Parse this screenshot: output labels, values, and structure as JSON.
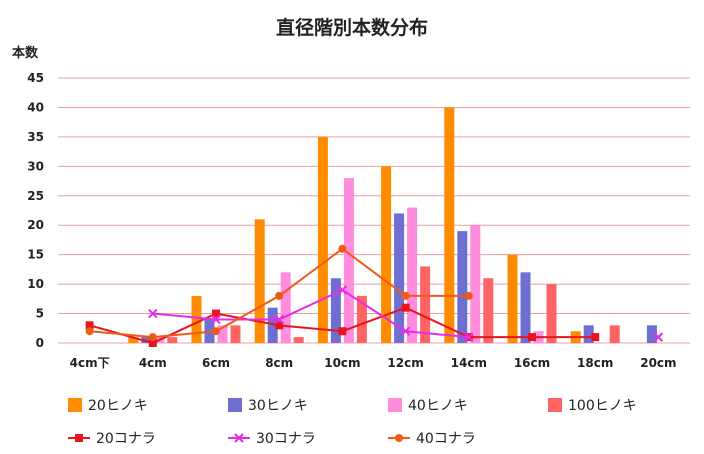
{
  "chart_data": {
    "type": "bar",
    "title": "直径階別本数分布",
    "ylabel": "本数",
    "xlabel": "",
    "ylim": [
      0,
      45
    ],
    "yticks": [
      0,
      5,
      10,
      15,
      20,
      25,
      30,
      35,
      40,
      45
    ],
    "grid": true,
    "legend_position": "bottom",
    "categories": [
      "4cm下",
      "4cm",
      "6cm",
      "8cm",
      "10cm",
      "12cm",
      "14cm",
      "16cm",
      "18cm",
      "20cm"
    ],
    "bar_series": [
      {
        "name": "20ヒノキ",
        "color": "#FF8C00",
        "values": [
          0,
          1,
          8,
          21,
          35,
          30,
          40,
          15,
          2,
          0
        ]
      },
      {
        "name": "30ヒノキ",
        "color": "#6F6FD2",
        "values": [
          0,
          1,
          4,
          6,
          11,
          22,
          19,
          12,
          3,
          3
        ]
      },
      {
        "name": "40ヒノキ",
        "color": "#FF8CDC",
        "values": [
          0,
          1,
          3,
          12,
          28,
          23,
          20,
          2,
          0,
          0
        ]
      },
      {
        "name": "100ヒノキ",
        "color": "#FF6464",
        "values": [
          0,
          1,
          3,
          1,
          8,
          13,
          11,
          10,
          3,
          0
        ]
      }
    ],
    "line_series": [
      {
        "name": "20コナラ",
        "color": "#E8141E",
        "marker": "square",
        "values": [
          3,
          0,
          5,
          3,
          2,
          6,
          1,
          1,
          1,
          null
        ]
      },
      {
        "name": "30コナラ",
        "color": "#E62DE6",
        "marker": "x",
        "values": [
          null,
          5,
          4,
          4,
          9,
          2,
          1,
          null,
          null,
          1
        ]
      },
      {
        "name": "40コナラ",
        "color": "#F05A19",
        "marker": "circle",
        "values": [
          2,
          1,
          2,
          8,
          16,
          8,
          8,
          null,
          null,
          null
        ]
      }
    ]
  }
}
